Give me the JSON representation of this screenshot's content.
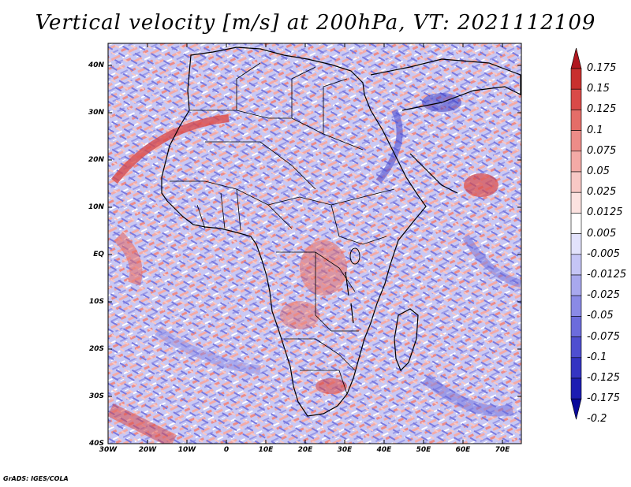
{
  "title": "Vertical velocity [m/s] at 200hPa, VT: 2021112109",
  "map": {
    "region": "Africa",
    "lat_labels": [
      "40N",
      "30N",
      "20N",
      "10N",
      "EQ",
      "10S",
      "20S",
      "30S",
      "40S"
    ],
    "lon_labels": [
      "30W",
      "20W",
      "10W",
      "0",
      "10E",
      "20E",
      "30E",
      "40E",
      "50E",
      "60E",
      "70E"
    ],
    "lat_range": [
      -40,
      45
    ],
    "lon_range": [
      -30,
      75
    ]
  },
  "colorbar": {
    "labels": [
      "0.175",
      "0.15",
      "0.125",
      "0.1",
      "0.075",
      "0.05",
      "0.025",
      "0.0125",
      "0.005",
      "-0.005",
      "-0.0125",
      "-0.025",
      "-0.05",
      "-0.075",
      "-0.1",
      "-0.125",
      "-0.175",
      "-0.2"
    ],
    "colors": [
      "#b0171f",
      "#c8302e",
      "#d94a48",
      "#e46d68",
      "#ed8c88",
      "#f3aaa6",
      "#f8c8c5",
      "#fce2e0",
      "#ffffff",
      "#e2e2fc",
      "#c5c5f6",
      "#a8a8ee",
      "#8a8ae6",
      "#6c6cdc",
      "#4f4fd0",
      "#3434c2",
      "#1c1cb2",
      "#0a0a9a"
    ]
  },
  "credit": "GrADS: IGES/COLA"
}
